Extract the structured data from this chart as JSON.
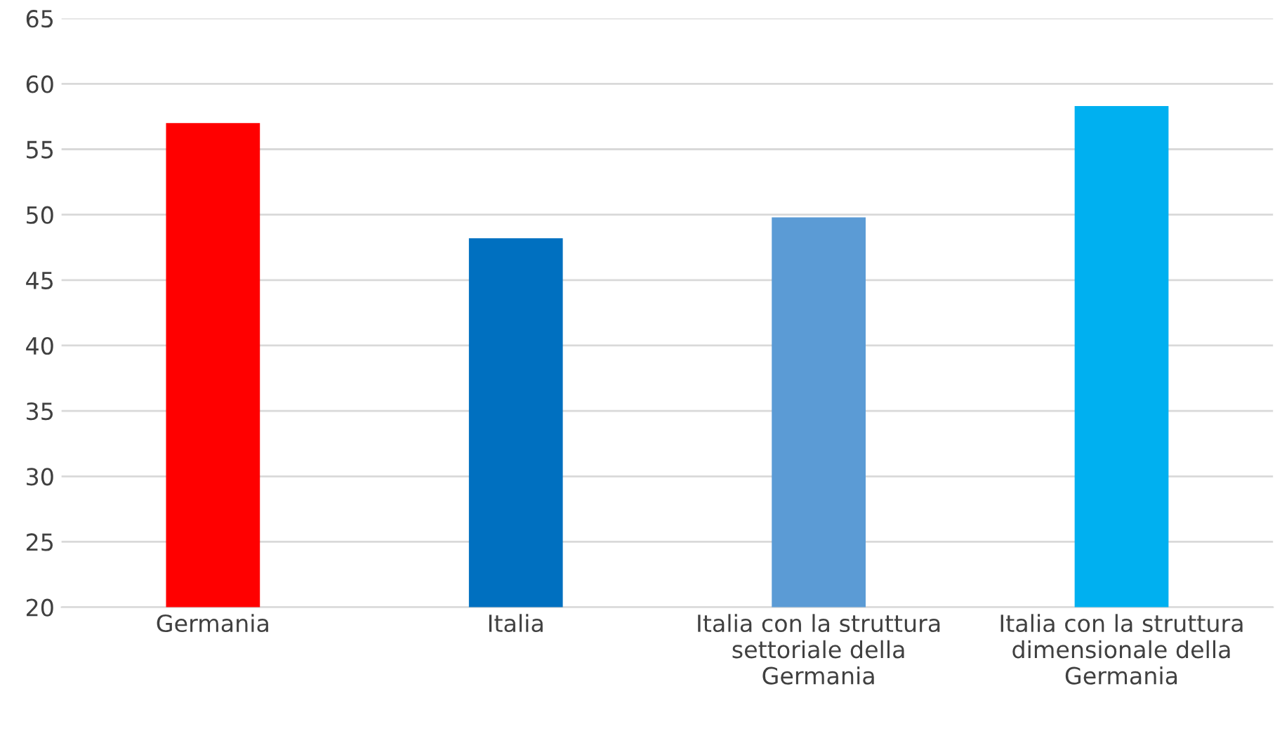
{
  "chart_data": {
    "type": "bar",
    "categories": [
      "Germania",
      "Italia",
      "Italia con la struttura\nsettoriale della\nGermania",
      "Italia con la struttura\ndimensionale della\nGermania"
    ],
    "values": [
      57.0,
      48.2,
      49.8,
      58.3
    ],
    "colors": [
      "#ff0000",
      "#0070c0",
      "#5b9bd5",
      "#00b0f0"
    ],
    "ylim": [
      20,
      65
    ],
    "yticks": [
      20,
      25,
      30,
      35,
      40,
      45,
      50,
      55,
      60,
      65
    ],
    "grid": "y",
    "legend": false
  }
}
